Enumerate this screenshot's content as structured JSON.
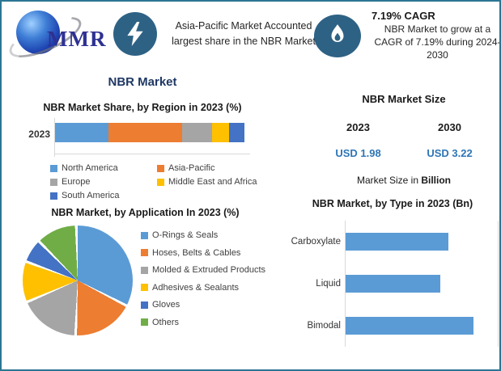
{
  "frame": {
    "border_color": "#2B7694",
    "background": "#ffffff"
  },
  "header": {
    "logo": {
      "text": "MMR",
      "brand_color": "#2e3192"
    },
    "icon_circle_color": "#2E6285",
    "highlight_left": {
      "icon": "lightning-bolt-icon",
      "text": "Asia-Pacific Market Accounted largest share in the NBR Market"
    },
    "highlight_right": {
      "icon": "flame-icon",
      "heading": "7.19% CAGR",
      "text": "NBR Market to grow at a CAGR of 7.19% during 2024-2030"
    }
  },
  "page_title": "NBR Market",
  "market_size": {
    "title": "NBR Market Size",
    "years": [
      "2023",
      "2030"
    ],
    "values": [
      "USD 1.98",
      "USD 3.22"
    ],
    "value_color": "#2E75B6",
    "footnote_prefix": "Market Size in ",
    "footnote_bold": "Billion"
  },
  "chart_data": [
    {
      "type": "bar",
      "subtype": "stacked-horizontal",
      "title": "NBR Market Share, by Region in 2023 (%)",
      "categories": [
        "2023"
      ],
      "series": [
        {
          "name": "North America",
          "values": [
            28
          ],
          "color": "#5B9BD5"
        },
        {
          "name": "Asia-Pacific",
          "values": [
            39
          ],
          "color": "#ED7D31"
        },
        {
          "name": "Europe",
          "values": [
            16
          ],
          "color": "#A5A5A5"
        },
        {
          "name": "Middle East and Africa",
          "values": [
            9
          ],
          "color": "#FFC000"
        },
        {
          "name": "South America",
          "values": [
            8
          ],
          "color": "#4472C4"
        }
      ],
      "xlim": [
        0,
        100
      ],
      "legend_position": "bottom",
      "grid": false
    },
    {
      "type": "pie",
      "title": "NBR Market, by Application In 2023 (%)",
      "labels": [
        "O-Rings & Seals",
        "Hoses, Belts & Cables",
        "Molded & Extruded Products",
        "Adhesives & Sealants",
        "Gloves",
        "Others"
      ],
      "values": [
        33,
        18,
        18,
        12,
        7,
        12
      ],
      "colors": [
        "#5B9BD5",
        "#ED7D31",
        "#A5A5A5",
        "#FFC000",
        "#4472C4",
        "#70AD47"
      ],
      "legend_position": "right",
      "start_angle_deg": 0
    },
    {
      "type": "bar",
      "subtype": "horizontal",
      "title": "NBR Market, by Type in 2023 (Bn)",
      "categories": [
        "Carboxylate",
        "Liquid",
        "Bimodal"
      ],
      "values": [
        0.63,
        0.58,
        0.78
      ],
      "bar_color": "#5B9BD5",
      "xlim": [
        0,
        0.93
      ],
      "grid": false
    }
  ]
}
